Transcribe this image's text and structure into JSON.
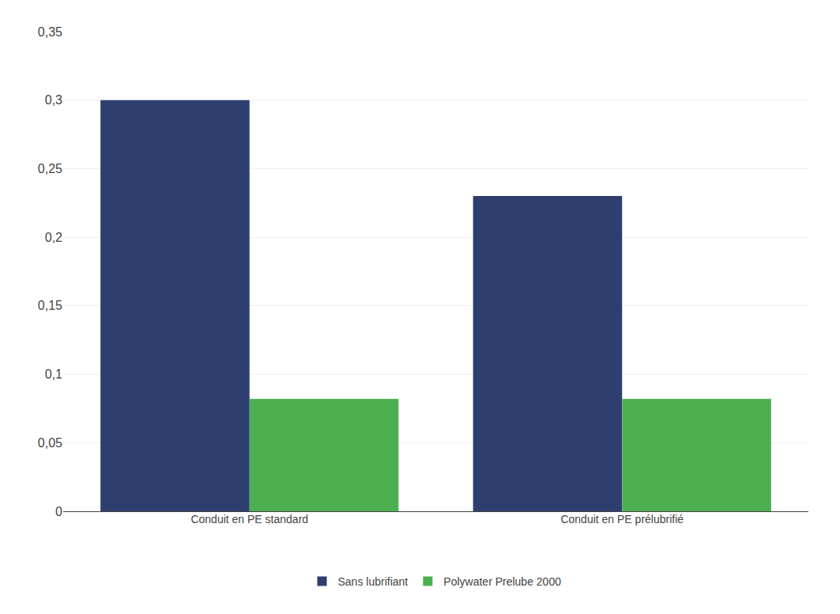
{
  "chart_data": {
    "type": "bar",
    "categories": [
      "Conduit en PE standard",
      "Conduit en PE prélubrifié"
    ],
    "series": [
      {
        "name": "Sans lubrifiant",
        "color": "#2E3F6F",
        "values": [
          0.3,
          0.23
        ]
      },
      {
        "name": "Polywater Prelube 2000",
        "color": "#4CAF50",
        "values": [
          0.082,
          0.082
        ]
      }
    ],
    "ylim": [
      0,
      0.35
    ],
    "yticks": [
      0,
      {
        "value": 0.05,
        "label": "0,05"
      },
      {
        "value": 0.1,
        "label": "0,1"
      },
      {
        "value": 0.15,
        "label": "0,15"
      },
      {
        "value": 0.2,
        "label": "0,2"
      },
      {
        "value": 0.25,
        "label": "0,25"
      },
      {
        "value": 0.3,
        "label": "0,3"
      },
      {
        "value": 0.35,
        "label": "0,35"
      }
    ],
    "grid": true,
    "legend": "bottom"
  }
}
